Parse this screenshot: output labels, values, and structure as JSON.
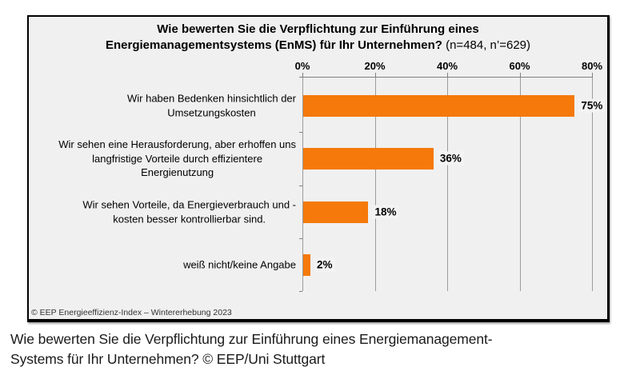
{
  "chart": {
    "title_line1": "Wie bewerten Sie die Verpflichtung zur Einführung eines",
    "title_line2_bold": "Energiemanagementsystems (EnMS) für Ihr Unternehmen?",
    "title_line2_note": "(n=484, n’=629)",
    "footer": "© EEP Energieeffizienz-Index – Wintererhebung 2023"
  },
  "chart_data": {
    "type": "bar",
    "orientation": "horizontal",
    "title": "Wie bewerten Sie die Verpflichtung zur Einführung eines Energiemanagementsystems (EnMS) für Ihr Unternehmen?",
    "subtitle_note": "(n=484, n’=629)",
    "categories": [
      "Wir haben Bedenken hinsichtlich der Umsetzungskosten",
      "Wir sehen eine Herausforderung, aber erhoffen uns langfristige Vorteile durch effizientere Energienutzung",
      "Wir sehen Vorteile, da Energieverbrauch und -kosten besser kontrollierbar sind.",
      "weiß nicht/keine Angabe"
    ],
    "category_lines": [
      [
        "Wir haben Bedenken hinsichtlich der",
        "Umsetzungskosten"
      ],
      [
        "Wir sehen eine Herausforderung, aber erhoffen uns",
        "langfristige Vorteile durch effizientere",
        "Energienutzung"
      ],
      [
        "Wir sehen Vorteile, da Energieverbrauch und -",
        "kosten besser kontrollierbar sind."
      ],
      [
        "weiß nicht/keine Angabe"
      ]
    ],
    "values": [
      75,
      36,
      18,
      2
    ],
    "value_labels": [
      "75%",
      "36%",
      "18%",
      "2%"
    ],
    "xlim": [
      0,
      80
    ],
    "x_ticks": [
      "0%",
      "20%",
      "40%",
      "60%",
      "80%"
    ],
    "x_tick_values": [
      0,
      20,
      40,
      60,
      80
    ],
    "grid": true,
    "legend": false,
    "bar_color": "#F5790B",
    "panel_background": "#F0F0F0",
    "gridline_color": "#9a9a9a",
    "source": "© EEP Energieeffizienz-Index – Wintererhebung 2023"
  },
  "caption": {
    "line1": "Wie bewerten Sie die Verpflichtung zur Einführung eines Energiemanagement-",
    "line2": "Systems für Ihr Unternehmen? © EEP/Uni Stuttgart"
  }
}
